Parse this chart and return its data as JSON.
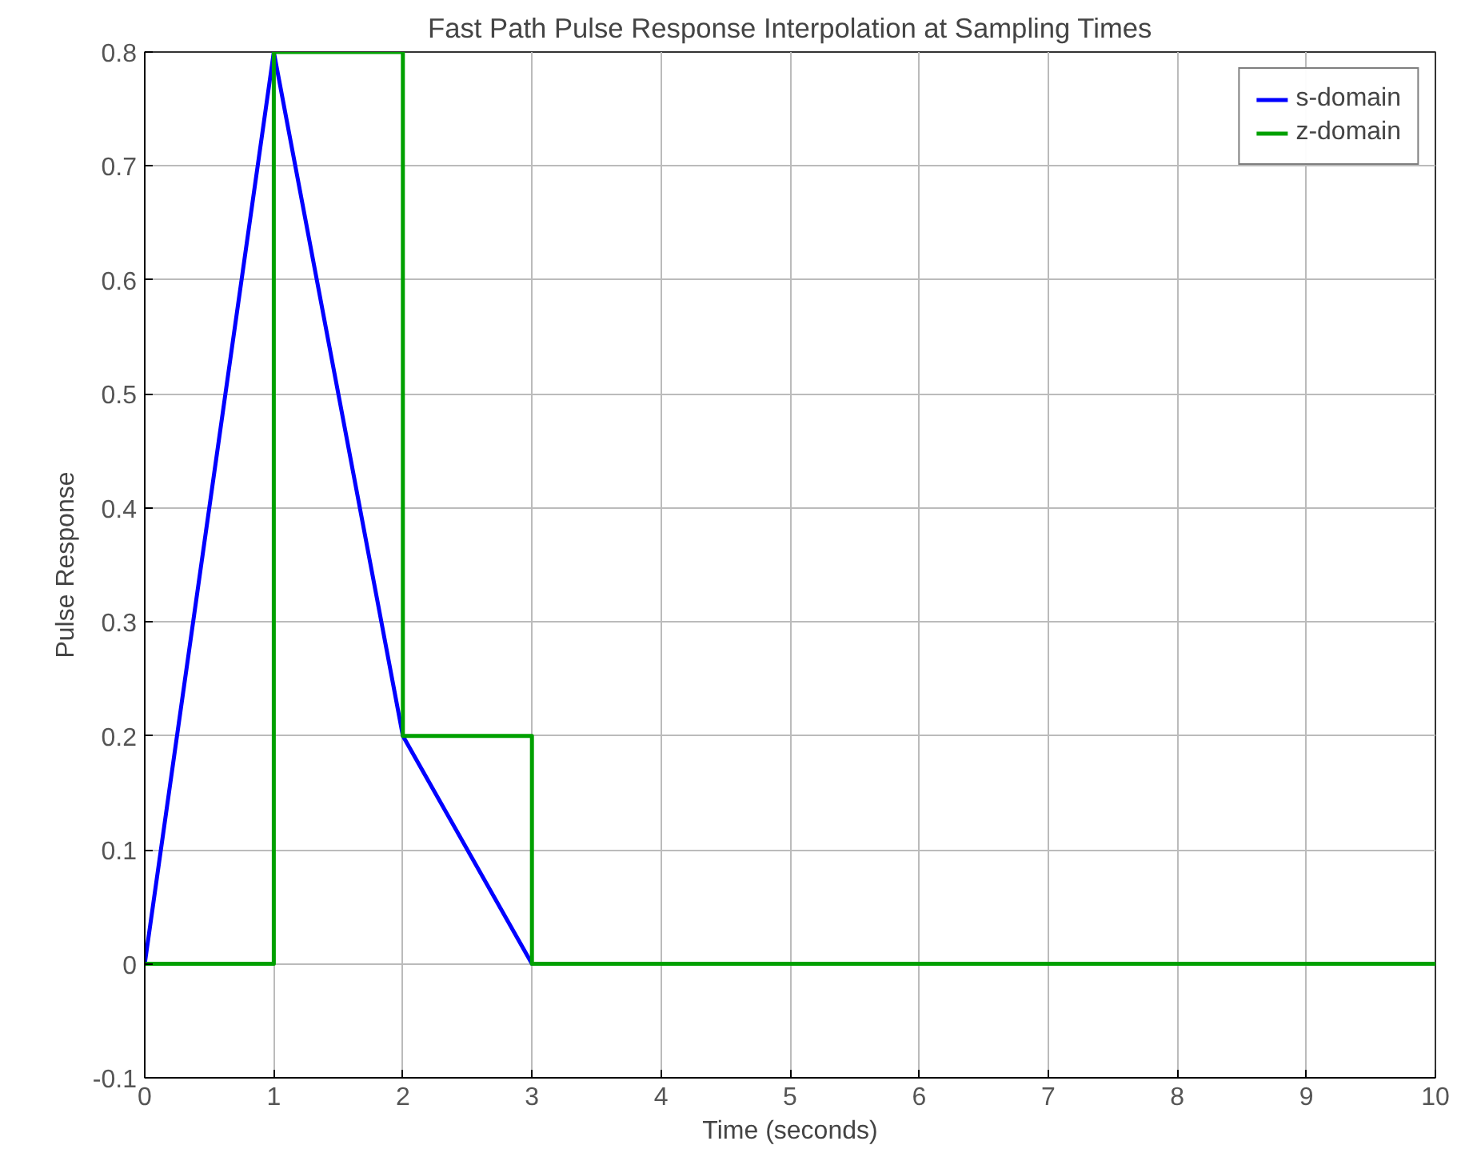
{
  "chart_data": {
    "type": "line",
    "title": "Fast Path Pulse Response Interpolation at Sampling Times",
    "xlabel": "Time (seconds)",
    "ylabel": "Pulse Response",
    "x": [
      0,
      1,
      2,
      3,
      10
    ],
    "series": [
      {
        "name": "s-domain",
        "color": "#0000ff",
        "values": [
          0,
          0.8,
          0.2,
          0,
          0
        ]
      },
      {
        "name": "z-domain",
        "type": "step",
        "color": "#00a000",
        "values": [
          0,
          0.8,
          0.2,
          0,
          0
        ]
      }
    ],
    "xlim": [
      0,
      10
    ],
    "ylim": [
      -0.1,
      0.8
    ],
    "xticks": [
      0,
      1,
      2,
      3,
      4,
      5,
      6,
      7,
      8,
      9,
      10
    ],
    "yticks": [
      -0.1,
      0,
      0.1,
      0.2,
      0.3,
      0.4,
      0.5,
      0.6,
      0.7,
      0.8
    ],
    "grid": true,
    "legend": "top right"
  }
}
